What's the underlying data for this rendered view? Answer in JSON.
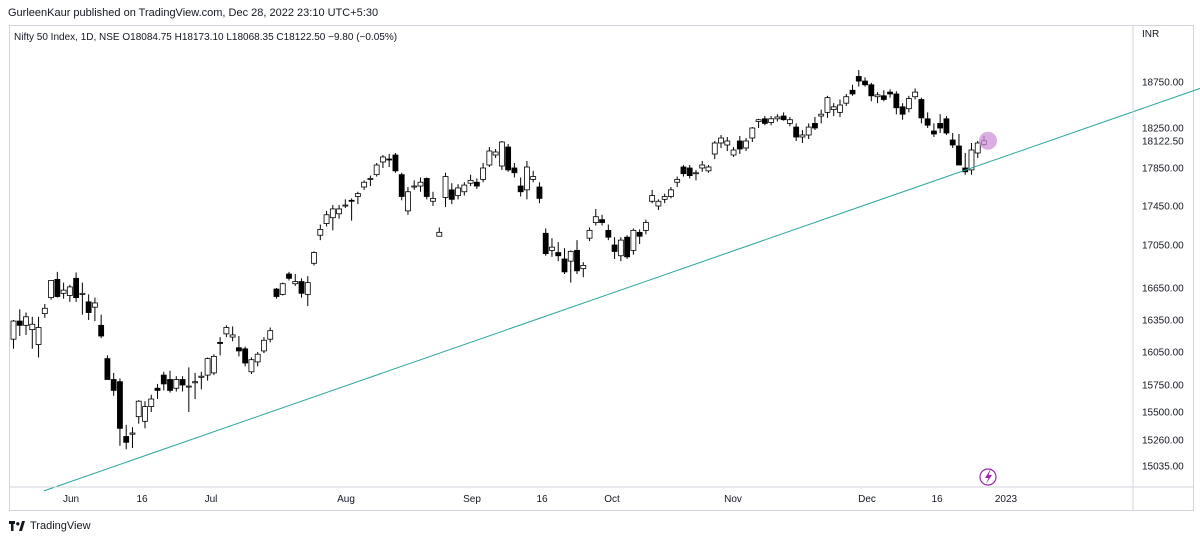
{
  "header": {
    "publisher": "GurleenKaur published on TradingView.com, Dec 28, 2022 23:10 UTC+5:30",
    "symbol_info": "Nifty 50 Index, 1D, NSE  O18084.75  H18173.10  L18068.35  C18122.50  −9.80 (−0.05%)",
    "currency": "INR"
  },
  "footer": {
    "brand": "TradingView"
  },
  "colors": {
    "up_body": "#ffffff",
    "down_body": "#000000",
    "trendline": "#26a69a",
    "highlight": "#ce93d8",
    "axis_line": "#d1d4dc"
  },
  "icons": {
    "logo": "tradingview-logo-icon",
    "flash": "lightning-icon"
  },
  "chart_data": {
    "type": "candlestick",
    "title": "Nifty 50 Index, 1D, NSE",
    "y_unit": "INR",
    "ylim": [
      14900,
      19050
    ],
    "yticks": [
      "18750.00",
      "18250.00",
      "18122.50",
      "17850.00",
      "17450.00",
      "17050.00",
      "16650.00",
      "16350.00",
      "16050.00",
      "15750.00",
      "15500.00",
      "15260.00",
      "15035.00"
    ],
    "xticks": [
      "Jun",
      "16",
      "Jul",
      "Aug",
      "Sep",
      "16",
      "Oct",
      "Nov",
      "Dec",
      "16",
      "2023"
    ],
    "last_price": 18122.5,
    "grid": false,
    "candles": [
      [
        16170,
        16350,
        16080,
        16340
      ],
      [
        16340,
        16450,
        16200,
        16300
      ],
      [
        16300,
        16420,
        16210,
        16380
      ],
      [
        16260,
        16380,
        16080,
        16310
      ],
      [
        16120,
        16380,
        16000,
        16280
      ],
      [
        16410,
        16500,
        16370,
        16460
      ],
      [
        16560,
        16720,
        16540,
        16720
      ],
      [
        16730,
        16800,
        16560,
        16570
      ],
      [
        16600,
        16700,
        16550,
        16630
      ],
      [
        16580,
        16680,
        16520,
        16660
      ],
      [
        16740,
        16795,
        16520,
        16560
      ],
      [
        16590,
        16700,
        16400,
        16600
      ],
      [
        16520,
        16590,
        16350,
        16420
      ],
      [
        16470,
        16560,
        16340,
        16510
      ],
      [
        16300,
        16400,
        16180,
        16200
      ],
      [
        15990,
        16020,
        15800,
        15800
      ],
      [
        15800,
        15860,
        15650,
        15700
      ],
      [
        15780,
        15810,
        15210,
        15360
      ],
      [
        15290,
        15390,
        15180,
        15240
      ],
      [
        15310,
        15370,
        15190,
        15320
      ],
      [
        15460,
        15610,
        15400,
        15600
      ],
      [
        15420,
        15600,
        15360,
        15550
      ],
      [
        15550,
        15660,
        15500,
        15620
      ],
      [
        15720,
        15760,
        15620,
        15700
      ],
      [
        15840,
        15870,
        15700,
        15760
      ],
      [
        15800,
        15880,
        15680,
        15700
      ],
      [
        15720,
        15830,
        15690,
        15800
      ],
      [
        15800,
        15830,
        15690,
        15750
      ],
      [
        15740,
        15910,
        15500,
        15740
      ],
      [
        15770,
        15860,
        15620,
        15780
      ],
      [
        15820,
        15870,
        15710,
        15830
      ],
      [
        15840,
        16000,
        15790,
        15990
      ],
      [
        15860,
        16030,
        15840,
        16010
      ],
      [
        16140,
        16190,
        16020,
        16130
      ],
      [
        16220,
        16300,
        16190,
        16280
      ],
      [
        16190,
        16290,
        16150,
        16210
      ],
      [
        16090,
        16200,
        16010,
        16060
      ],
      [
        16080,
        16100,
        15920,
        15950
      ],
      [
        15870,
        16000,
        15850,
        15980
      ],
      [
        15960,
        16050,
        15920,
        16030
      ],
      [
        16060,
        16190,
        16040,
        16160
      ],
      [
        16170,
        16280,
        16140,
        16250
      ],
      [
        16640,
        16650,
        16550,
        16570
      ],
      [
        16590,
        16700,
        16580,
        16690
      ],
      [
        16780,
        16800,
        16720,
        16740
      ],
      [
        16690,
        16780,
        16670,
        16710
      ],
      [
        16710,
        16740,
        16560,
        16600
      ],
      [
        16590,
        16760,
        16480,
        16700
      ],
      [
        16880,
        16990,
        16860,
        16980
      ],
      [
        17150,
        17260,
        17100,
        17210
      ],
      [
        17270,
        17400,
        17240,
        17360
      ],
      [
        17330,
        17460,
        17200,
        17420
      ],
      [
        17370,
        17460,
        17320,
        17420
      ],
      [
        17450,
        17520,
        17430,
        17460
      ],
      [
        17510,
        17530,
        17300,
        17500
      ],
      [
        17550,
        17600,
        17470,
        17580
      ],
      [
        17650,
        17720,
        17620,
        17700
      ],
      [
        17730,
        17770,
        17660,
        17740
      ],
      [
        17780,
        17900,
        17760,
        17880
      ],
      [
        17910,
        17980,
        17850,
        17960
      ],
      [
        17940,
        17990,
        17860,
        17930
      ],
      [
        17980,
        18000,
        17800,
        17820
      ],
      [
        17780,
        17800,
        17510,
        17550
      ],
      [
        17400,
        17650,
        17360,
        17600
      ],
      [
        17650,
        17720,
        17620,
        17660
      ],
      [
        17660,
        17750,
        17600,
        17700
      ],
      [
        17740,
        17750,
        17520,
        17550
      ],
      [
        17500,
        17600,
        17450,
        17530
      ],
      [
        17140,
        17230,
        17140,
        17180
      ],
      [
        17540,
        17800,
        17440,
        17760
      ],
      [
        17620,
        17690,
        17470,
        17520
      ],
      [
        17560,
        17680,
        17520,
        17640
      ],
      [
        17600,
        17700,
        17560,
        17670
      ],
      [
        17690,
        17780,
        17660,
        17720
      ],
      [
        17700,
        17740,
        17630,
        17660
      ],
      [
        17730,
        17900,
        17700,
        17850
      ],
      [
        17880,
        18060,
        17860,
        18020
      ],
      [
        17980,
        18040,
        17950,
        18010
      ],
      [
        17870,
        18120,
        17830,
        18110
      ],
      [
        18060,
        18090,
        17810,
        17830
      ],
      [
        17850,
        17900,
        17750,
        17800
      ],
      [
        17660,
        17750,
        17550,
        17600
      ],
      [
        17620,
        17920,
        17520,
        17860
      ],
      [
        17730,
        17820,
        17700,
        17760
      ],
      [
        17650,
        17700,
        17480,
        17530
      ],
      [
        17170,
        17220,
        16950,
        16970
      ],
      [
        17000,
        17120,
        16940,
        17030
      ],
      [
        16980,
        17080,
        16900,
        16950
      ],
      [
        16920,
        17020,
        16780,
        16800
      ],
      [
        16900,
        17000,
        16700,
        16990
      ],
      [
        17000,
        17100,
        16780,
        16810
      ],
      [
        16830,
        16890,
        16750,
        16860
      ],
      [
        17120,
        17230,
        17090,
        17200
      ],
      [
        17280,
        17420,
        17250,
        17340
      ],
      [
        17310,
        17360,
        17250,
        17280
      ],
      [
        17200,
        17260,
        17100,
        17130
      ],
      [
        17050,
        17130,
        16920,
        16990
      ],
      [
        16950,
        17130,
        16900,
        17100
      ],
      [
        17130,
        17150,
        16920,
        16940
      ],
      [
        17000,
        17220,
        16960,
        17200
      ],
      [
        17180,
        17210,
        17060,
        17140
      ],
      [
        17200,
        17310,
        17160,
        17280
      ],
      [
        17500,
        17620,
        17480,
        17560
      ],
      [
        17450,
        17520,
        17410,
        17500
      ],
      [
        17520,
        17580,
        17480,
        17550
      ],
      [
        17550,
        17650,
        17530,
        17620
      ],
      [
        17700,
        17760,
        17650,
        17730
      ],
      [
        17860,
        17880,
        17760,
        17790
      ],
      [
        17850,
        17880,
        17740,
        17770
      ],
      [
        17800,
        17830,
        17720,
        17800
      ],
      [
        17850,
        17920,
        17810,
        17880
      ],
      [
        17820,
        17880,
        17800,
        17860
      ],
      [
        17990,
        18120,
        17940,
        18100
      ],
      [
        18100,
        18180,
        18050,
        18150
      ],
      [
        18080,
        18160,
        18020,
        18120
      ],
      [
        17980,
        18060,
        17960,
        18030
      ],
      [
        18120,
        18170,
        17990,
        18040
      ],
      [
        18050,
        18150,
        18020,
        18120
      ],
      [
        18150,
        18260,
        18110,
        18250
      ],
      [
        18320,
        18350,
        18250,
        18340
      ],
      [
        18350,
        18380,
        18280,
        18300
      ],
      [
        18310,
        18380,
        18280,
        18350
      ],
      [
        18350,
        18400,
        18320,
        18370
      ],
      [
        18380,
        18420,
        18330,
        18340
      ],
      [
        18300,
        18370,
        18270,
        18340
      ],
      [
        18260,
        18300,
        18120,
        18160
      ],
      [
        18160,
        18230,
        18100,
        18180
      ],
      [
        18180,
        18300,
        18140,
        18260
      ],
      [
        18300,
        18370,
        18230,
        18250
      ],
      [
        18380,
        18450,
        18300,
        18400
      ],
      [
        18420,
        18600,
        18360,
        18580
      ],
      [
        18450,
        18520,
        18380,
        18480
      ],
      [
        18420,
        18560,
        18370,
        18500
      ],
      [
        18520,
        18620,
        18490,
        18590
      ],
      [
        18660,
        18720,
        18600,
        18620
      ],
      [
        18810,
        18880,
        18700,
        18760
      ],
      [
        18760,
        18800,
        18700,
        18720
      ],
      [
        18720,
        18740,
        18540,
        18600
      ],
      [
        18590,
        18640,
        18520,
        18610
      ],
      [
        18600,
        18660,
        18540,
        18560
      ],
      [
        18640,
        18670,
        18580,
        18620
      ],
      [
        18620,
        18650,
        18400,
        18470
      ],
      [
        18480,
        18520,
        18340,
        18400
      ],
      [
        18460,
        18600,
        18420,
        18570
      ],
      [
        18590,
        18680,
        18560,
        18640
      ],
      [
        18560,
        18580,
        18300,
        18360
      ],
      [
        18350,
        18420,
        18250,
        18280
      ],
      [
        18220,
        18300,
        18160,
        18190
      ],
      [
        18300,
        18400,
        18200,
        18250
      ],
      [
        18350,
        18380,
        18180,
        18200
      ],
      [
        18130,
        18200,
        18050,
        18080
      ],
      [
        18070,
        18190,
        17880,
        17880
      ],
      [
        17850,
        18000,
        17780,
        17810
      ],
      [
        17830,
        18100,
        17780,
        18030
      ],
      [
        18000,
        18120,
        17950,
        18100
      ],
      [
        18084.75,
        18173.1,
        18068.35,
        18122.5
      ]
    ],
    "trendline": {
      "from_date": "2022-05-20",
      "from_price": 14820,
      "to_date": "2023-01-31",
      "to_price": 18820
    }
  }
}
